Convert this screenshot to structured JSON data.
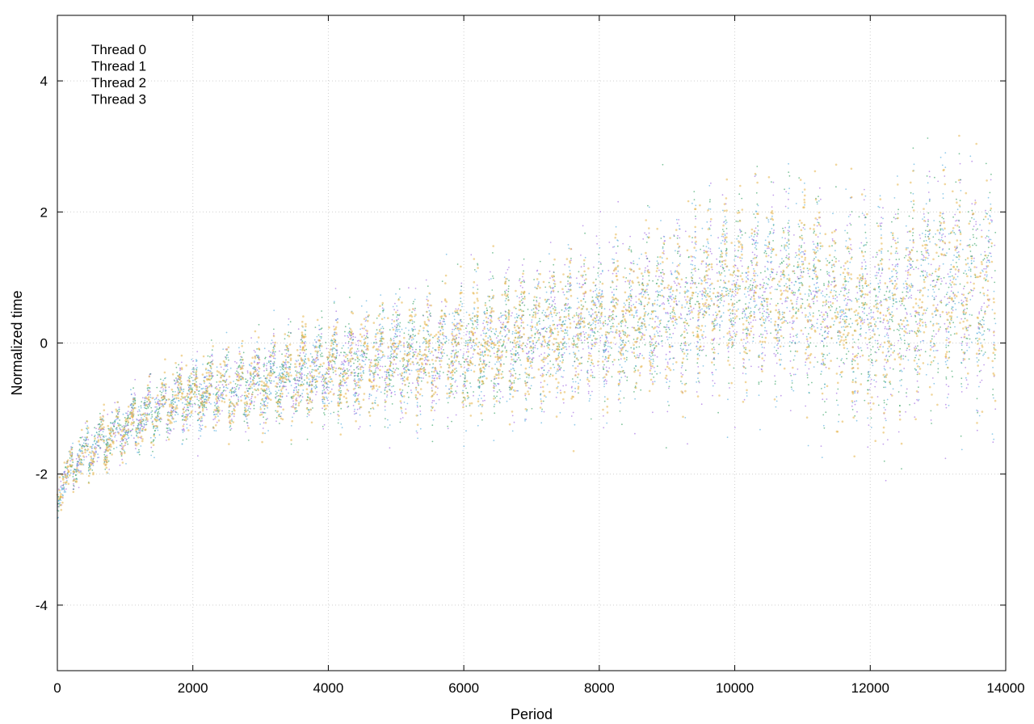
{
  "chart_data": {
    "type": "scatter",
    "title": "",
    "xlabel": "Period",
    "ylabel": "Normalized time",
    "xlim": [
      0,
      14000
    ],
    "ylim": [
      -5,
      5
    ],
    "xticks": [
      0,
      2000,
      4000,
      6000,
      8000,
      10000,
      12000,
      14000
    ],
    "yticks": [
      -4,
      -2,
      0,
      2,
      4
    ],
    "xtick_labels": [
      "0",
      "2000",
      "4000",
      "6000",
      "8000",
      "10000",
      "12000",
      "14000"
    ],
    "ytick_labels": [
      "-4",
      "-2",
      "0",
      "2",
      "4"
    ],
    "grid": true,
    "legend_position": "top-left",
    "x_range_of_points": [
      0,
      13850
    ],
    "trend": {
      "x": [
        0,
        200,
        500,
        1000,
        1500,
        2000,
        3000,
        4000,
        5000,
        6000,
        7000,
        8000,
        9000,
        10000,
        11000,
        12000,
        13000,
        13850
      ],
      "y": [
        -2.3,
        -1.9,
        -1.6,
        -1.3,
        -1.0,
        -0.8,
        -0.6,
        -0.4,
        -0.2,
        -0.1,
        0.1,
        0.3,
        0.5,
        0.8,
        0.7,
        0.3,
        0.9,
        0.8
      ]
    },
    "series": [
      {
        "name": "Thread 0",
        "color": "#9b5fe0"
      },
      {
        "name": "Thread 1",
        "color": "#2a9d5a"
      },
      {
        "name": "Thread 2",
        "color": "#4aa8dc"
      },
      {
        "name": "Thread 3",
        "color": "#e6b44a"
      }
    ]
  }
}
